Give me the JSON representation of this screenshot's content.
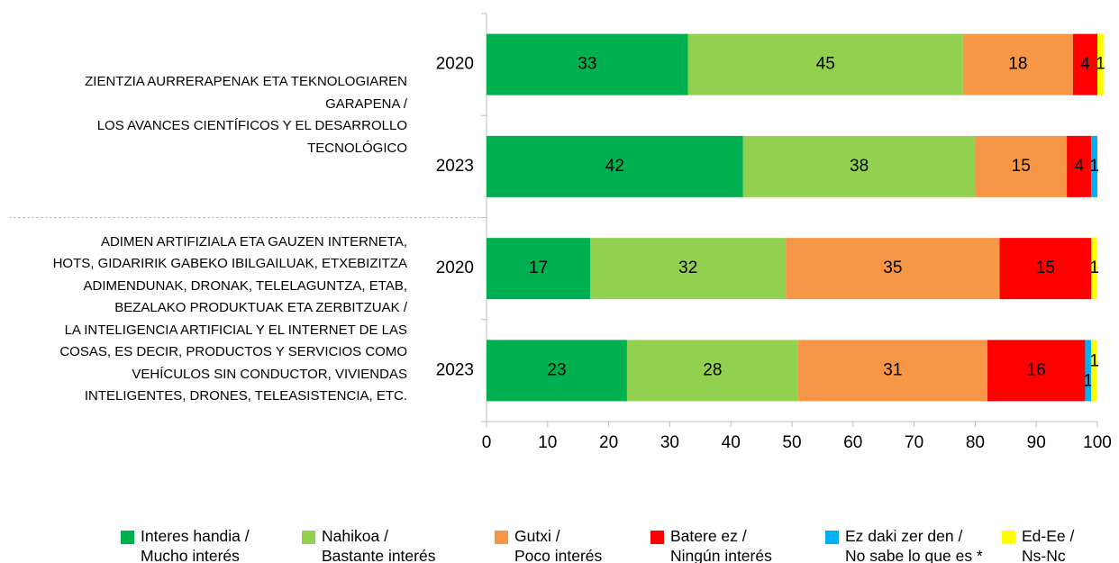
{
  "chart_data": {
    "type": "stacked-barh",
    "groups": [
      {
        "label": "ZIENTZIA AURRERAPENAK ETA TEKNOLOGIAREN\nGARAPENA /\nLOS AVANCES CIENTÍFICOS  Y EL DESARROLLO\nTECNOLÓGICO"
      },
      {
        "label": "ADIMEN ARTIFIZIALA ETA GAUZEN INTERNETA,\nHOTS, GIDARIRIK GABEKO IBILGAILUAK, ETXEBIZITZA\nADIMENDUNAK, DRONAK, TELELAGUNTZA, ETAB,\nBEZALAKO PRODUKTUAK ETA ZERBITZUAK /\nLA INTELIGENCIA ARTIFICIAL Y EL INTERNET DE LAS\nCOSAS, ES  DECIR, PRODUCTOS Y SERVICIOS COMO\nVEHÍCULOS SIN CONDUCTOR, VIVIENDAS\nINTELIGENTES, DRONES, TELEASISTENCIA,  ETC."
      }
    ],
    "categories": [
      "2020",
      "2023",
      "2020",
      "2023"
    ],
    "series": [
      {
        "name": "Interes handia /\nMucho interés",
        "color": "#00b050",
        "values": [
          33,
          42,
          17,
          23
        ]
      },
      {
        "name": "Nahikoa /\nBastante interés",
        "color": "#92d050",
        "values": [
          45,
          38,
          32,
          28
        ]
      },
      {
        "name": "Gutxi /\nPoco interés",
        "color": "#f79646",
        "values": [
          18,
          15,
          35,
          31
        ]
      },
      {
        "name": "Batere ez /\nNingún interés",
        "color": "#ff0000",
        "values": [
          4,
          4,
          15,
          16
        ]
      },
      {
        "name": "Ez daki zer den /\nNo sabe lo que es *",
        "color": "#00b0f0",
        "values": [
          null,
          1,
          null,
          1
        ]
      },
      {
        "name": "Ed-Ee /\nNs-Nc",
        "color": "#ffff00",
        "values": [
          1,
          null,
          1,
          1
        ]
      }
    ],
    "xlim": [
      0,
      100
    ],
    "xticks": [
      0,
      10,
      20,
      30,
      40,
      50,
      60,
      70,
      80,
      90,
      100
    ]
  }
}
